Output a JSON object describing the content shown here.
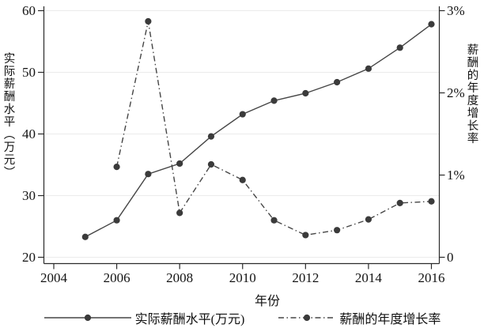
{
  "figure": {
    "background": "#ffffff",
    "line_color": "#454545",
    "marker_color": "#3b3b3b",
    "grid_color": "#ebebeb",
    "spine_color": "#2a2a2a",
    "text_color": "#141414"
  },
  "chart_data": {
    "type": "line",
    "title": "",
    "xlabel": "年份",
    "ylabel_left": "实际薪酬水平（万元）",
    "ylabel_right": "薪酬的年度增长率",
    "x_range": [
      2004,
      2016
    ],
    "x_ticks": [
      2004,
      2006,
      2008,
      2010,
      2012,
      2014,
      2016
    ],
    "y_left_range": [
      20,
      60
    ],
    "y_left_ticks": [
      20,
      30,
      40,
      50,
      60
    ],
    "y_right_range": [
      0,
      3
    ],
    "y_right_ticks": [
      0,
      1,
      2,
      3
    ],
    "y_right_tick_labels": [
      "0",
      "1%",
      "2%",
      "3%"
    ],
    "grid": true,
    "legend_position": "bottom",
    "series": [
      {
        "name": "实际薪酬水平(万元)",
        "axis": "left",
        "style": "solid",
        "marker": "circle",
        "x": [
          2005,
          2006,
          2007,
          2008,
          2009,
          2010,
          2011,
          2012,
          2013,
          2014,
          2015,
          2016
        ],
        "values": [
          23.3,
          26.0,
          33.5,
          35.2,
          39.6,
          43.2,
          45.4,
          46.6,
          48.4,
          50.6,
          54.0,
          57.8
        ]
      },
      {
        "name": "薪酬的年度增长率",
        "axis": "right",
        "style": "dashdot",
        "marker": "circle",
        "x": [
          2006,
          2007,
          2008,
          2009,
          2010,
          2011,
          2012,
          2013,
          2014,
          2015,
          2016
        ],
        "values": [
          1.1,
          2.87,
          0.54,
          1.13,
          0.94,
          0.45,
          0.27,
          0.33,
          0.46,
          0.66,
          0.68
        ]
      }
    ]
  }
}
